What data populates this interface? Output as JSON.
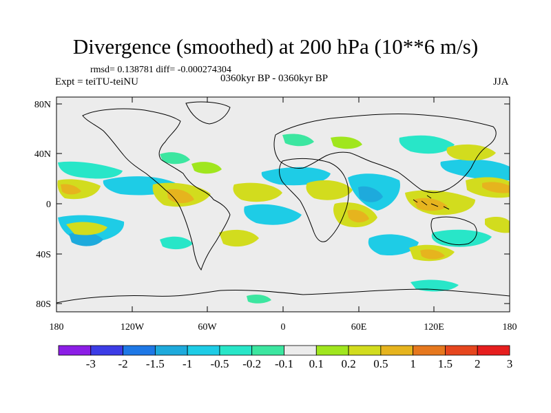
{
  "title": "Divergence (smoothed) at 200 hPa (10**6 m/s)",
  "stats_text": "rmsd= 0.138781  diff= -0.000274304",
  "experiment": "Expt = teiTU-teiNU",
  "period": "0360kyr BP - 0360kyr BP",
  "season": "JJA",
  "lat_labels": [
    "80N",
    "40N",
    "0",
    "40S",
    "80S"
  ],
  "lon_labels": [
    "180",
    "120W",
    "60W",
    "0",
    "60E",
    "120E",
    "180"
  ],
  "colorbar": {
    "labels": [
      "-3",
      "-2",
      "-1.5",
      "-1",
      "-0.5",
      "-0.2",
      "-0.1",
      "0.1",
      "0.2",
      "0.5",
      "1",
      "1.5",
      "2",
      "3"
    ],
    "colors": [
      "#8c1ee6",
      "#3c3ce6",
      "#1e78e6",
      "#1eaadc",
      "#1ecce6",
      "#28e6c8",
      "#3ce6a0",
      "#ececec",
      "#a0e61e",
      "#d2dc1e",
      "#e6b41e",
      "#e6781e",
      "#e6461e",
      "#e61e1e"
    ]
  },
  "colors": {
    "background": "#ececec",
    "land_outline": "#000000"
  }
}
